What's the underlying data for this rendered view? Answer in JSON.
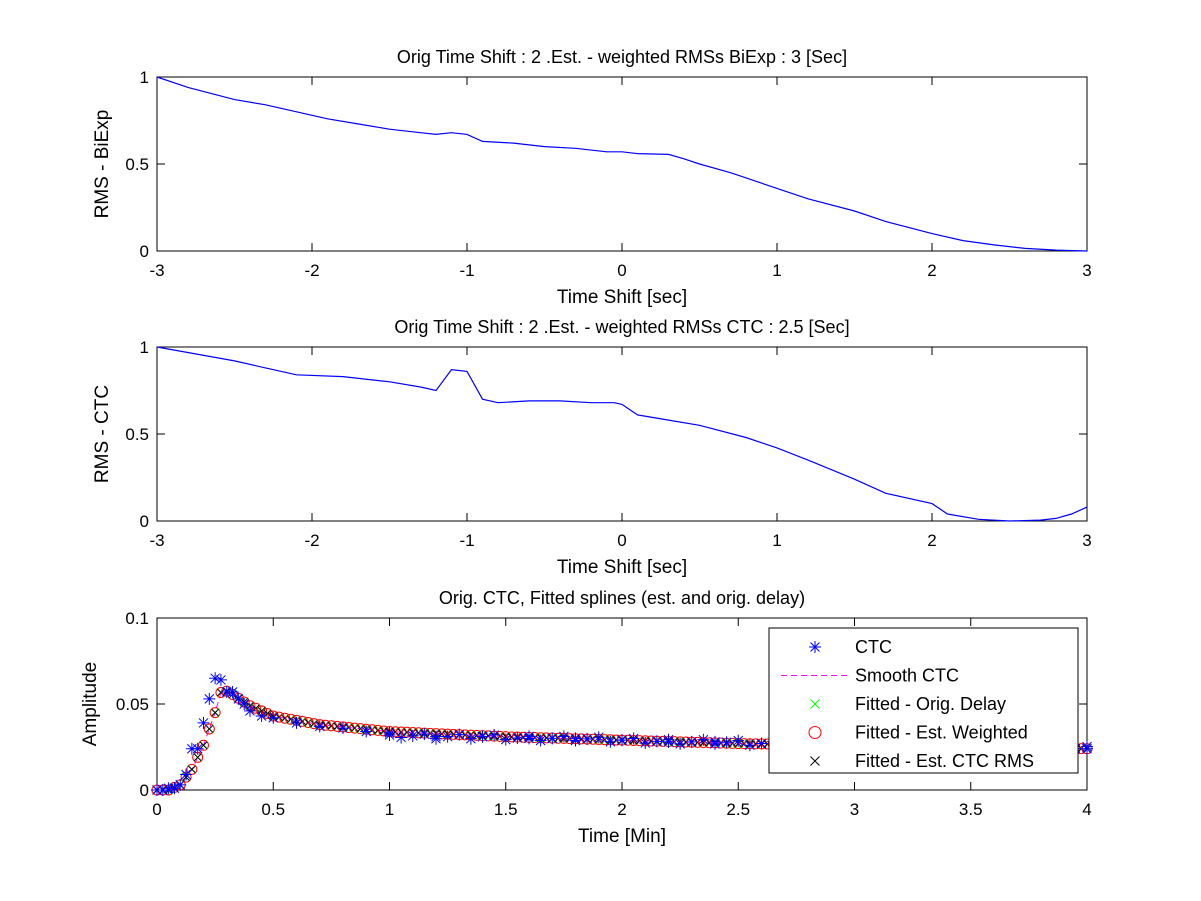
{
  "figure": {
    "colors": {
      "background": "#ffffff",
      "axes": "#000000",
      "rms_line": "#0000ff",
      "ctc_marker": "#0000ff",
      "smooth": "#ff00ff",
      "orig_delay": "#00ff00",
      "est_weighted": "#ff0000",
      "est_ctc_rms": "#000000"
    }
  },
  "chart_data": [
    {
      "type": "line",
      "title": "Orig Time Shift : 2 .Est. - weighted RMSs BiExp : 3 [Sec]",
      "xlabel": "Time Shift [sec]",
      "ylabel": "RMS - BiExp",
      "xlim": [
        -3,
        3
      ],
      "ylim": [
        0,
        1
      ],
      "xticks": [
        -3,
        -2,
        -1,
        0,
        1,
        2,
        3
      ],
      "xtick_labels": [
        "-3",
        "-2",
        "-1",
        "0",
        "1",
        "2",
        "3"
      ],
      "yticks": [
        0,
        0.5,
        1
      ],
      "ytick_labels": [
        "0",
        "0.5",
        "1"
      ],
      "grid": false,
      "series": [
        {
          "x": [
            -3,
            -2.8,
            -2.5,
            -2.3,
            -2.1,
            -1.9,
            -1.7,
            -1.5,
            -1.3,
            -1.2,
            -1.1,
            -1.0,
            -0.9,
            -0.7,
            -0.5,
            -0.3,
            -0.1,
            0,
            0.1,
            0.3,
            0.4,
            0.5,
            0.7,
            1.0,
            1.2,
            1.5,
            1.7,
            2.0,
            2.2,
            2.4,
            2.6,
            2.8,
            3.0
          ],
          "y": [
            1.0,
            0.94,
            0.87,
            0.84,
            0.8,
            0.76,
            0.73,
            0.7,
            0.68,
            0.67,
            0.68,
            0.67,
            0.63,
            0.62,
            0.6,
            0.59,
            0.57,
            0.57,
            0.56,
            0.555,
            0.53,
            0.5,
            0.45,
            0.36,
            0.3,
            0.23,
            0.17,
            0.1,
            0.06,
            0.035,
            0.015,
            0.005,
            0.0
          ]
        }
      ]
    },
    {
      "type": "line",
      "title": "Orig Time Shift : 2 .Est. - weighted RMSs CTC : 2.5 [Sec]",
      "xlabel": "Time Shift [sec]",
      "ylabel": "RMS - CTC",
      "xlim": [
        -3,
        3
      ],
      "ylim": [
        0,
        1
      ],
      "xticks": [
        -3,
        -2,
        -1,
        0,
        1,
        2,
        3
      ],
      "xtick_labels": [
        "-3",
        "-2",
        "-1",
        "0",
        "1",
        "2",
        "3"
      ],
      "yticks": [
        0,
        0.5,
        1
      ],
      "ytick_labels": [
        "0",
        "0.5",
        "1"
      ],
      "grid": false,
      "series": [
        {
          "x": [
            -3,
            -2.5,
            -2.3,
            -2.1,
            -1.8,
            -1.5,
            -1.3,
            -1.2,
            -1.1,
            -1.0,
            -0.9,
            -0.8,
            -0.6,
            -0.4,
            -0.2,
            -0.05,
            0,
            0.1,
            0.3,
            0.5,
            0.8,
            1.0,
            1.2,
            1.5,
            1.7,
            2.0,
            2.1,
            2.3,
            2.5,
            2.7,
            2.8,
            2.9,
            3.0
          ],
          "y": [
            1.0,
            0.92,
            0.88,
            0.84,
            0.83,
            0.8,
            0.77,
            0.75,
            0.87,
            0.86,
            0.7,
            0.68,
            0.69,
            0.69,
            0.68,
            0.68,
            0.67,
            0.61,
            0.58,
            0.55,
            0.48,
            0.42,
            0.35,
            0.24,
            0.16,
            0.1,
            0.04,
            0.01,
            0.0,
            0.005,
            0.015,
            0.04,
            0.08
          ]
        }
      ]
    },
    {
      "type": "line",
      "title": "Orig. CTC, Fitted splines (est. and orig. delay)",
      "xlabel": "Time [Min]",
      "ylabel": "Amplitude",
      "xlim": [
        0,
        4
      ],
      "ylim": [
        0,
        0.1
      ],
      "xticks": [
        0,
        0.5,
        1,
        1.5,
        2,
        2.5,
        3,
        3.5,
        4
      ],
      "xtick_labels": [
        "0",
        "0.5",
        "1",
        "1.5",
        "2",
        "2.5",
        "3",
        "3.5",
        "4"
      ],
      "yticks": [
        0,
        0.05,
        0.1
      ],
      "ytick_labels": [
        "0",
        "0.05",
        "0.1"
      ],
      "grid": false,
      "legend_location": "top-right",
      "legend": [
        "CTC",
        "Smooth CTC",
        "Fitted - Orig. Delay",
        "Fitted - Est. Weighted",
        "Fitted - Est. CTC RMS"
      ],
      "curve_x": [
        0,
        0.05,
        0.1,
        0.15,
        0.2,
        0.25,
        0.28,
        0.32,
        0.4,
        0.5,
        0.7,
        1.0,
        1.5,
        2.0,
        2.5,
        3.0,
        3.5,
        4.0
      ],
      "curve_y": [
        0,
        0,
        0.003,
        0.012,
        0.026,
        0.045,
        0.059,
        0.056,
        0.049,
        0.043,
        0.038,
        0.034,
        0.031,
        0.029,
        0.027,
        0.026,
        0.025,
        0.024
      ],
      "ctc_x": [
        0,
        0.025,
        0.05,
        0.075,
        0.1,
        0.125,
        0.15,
        0.175,
        0.2,
        0.225,
        0.25,
        0.275,
        0.3,
        0.325,
        0.35,
        0.375,
        0.4,
        0.45,
        0.5,
        0.6,
        0.7,
        0.8,
        0.9,
        1.0,
        1.2,
        1.4,
        1.6,
        1.8,
        2.0,
        2.2,
        2.4,
        2.6,
        2.8,
        3.0,
        3.2,
        3.4,
        3.6,
        3.8,
        4.0
      ],
      "ctc_y": [
        0.0,
        0.0,
        0.001,
        0.001,
        0.003,
        0.009,
        0.024,
        0.024,
        0.039,
        0.053,
        0.065,
        0.064,
        0.057,
        0.057,
        0.053,
        0.05,
        0.046,
        0.043,
        0.042,
        0.039,
        0.037,
        0.036,
        0.034,
        0.032,
        0.031,
        0.031,
        0.03,
        0.03,
        0.029,
        0.028,
        0.028,
        0.027,
        0.027,
        0.026,
        0.026,
        0.025,
        0.025,
        0.024,
        0.024
      ],
      "series": [
        {
          "name": "CTC",
          "marker": "asterisk",
          "color": "#0000ff"
        },
        {
          "name": "Smooth CTC",
          "marker": "dashed-line",
          "color": "#ff00ff"
        },
        {
          "name": "Fitted - Orig. Delay",
          "marker": "x",
          "color": "#00ff00"
        },
        {
          "name": "Fitted - Est. Weighted",
          "marker": "circle",
          "color": "#ff0000"
        },
        {
          "name": "Fitted - Est. CTC RMS",
          "marker": "x",
          "color": "#000000"
        }
      ]
    }
  ]
}
